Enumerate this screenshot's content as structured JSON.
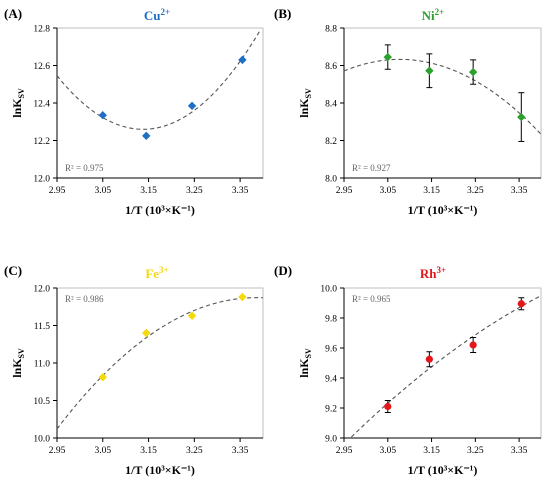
{
  "chart_data": [
    {
      "type": "scatter",
      "panel": "(A)",
      "ion": "Cu",
      "charge": "2+",
      "color": "#1f6fc5",
      "marker": "diamond",
      "error_bars": false,
      "xlabel": "1/T (10³×K⁻¹)",
      "ylabel": "lnK",
      "ylabel_sub": "SV",
      "xlim": [
        2.95,
        3.4
      ],
      "ylim": [
        12.0,
        12.8
      ],
      "xticks": [
        "2.95",
        "3.05",
        "3.15",
        "3.25",
        "3.35"
      ],
      "yticks": [
        "12.0",
        "12.2",
        "12.4",
        "12.6",
        "12.8"
      ],
      "x": [
        3.05,
        3.145,
        3.245,
        3.355
      ],
      "y": [
        12.335,
        12.225,
        12.385,
        12.63
      ],
      "fit": "polynomial-2",
      "r2_text": "R² = 0.975",
      "r2_position": "bottom-left"
    },
    {
      "type": "scatter",
      "panel": "(B)",
      "ion": "Ni",
      "charge": "2+",
      "color": "#2ca02c",
      "marker": "diamond",
      "error_bars": true,
      "xlabel": "1/T (10³×K⁻¹)",
      "ylabel": "lnK",
      "ylabel_sub": "SV",
      "xlim": [
        2.95,
        3.4
      ],
      "ylim": [
        8.0,
        8.8
      ],
      "xticks": [
        "2.95",
        "3.05",
        "3.15",
        "3.25",
        "3.35"
      ],
      "yticks": [
        "8.0",
        "8.2",
        "8.4",
        "8.6",
        "8.8"
      ],
      "x": [
        3.05,
        3.145,
        3.245,
        3.355
      ],
      "y": [
        8.645,
        8.572,
        8.565,
        8.325
      ],
      "yerr": [
        0.065,
        0.09,
        0.065,
        0.13
      ],
      "fit": "polynomial-2",
      "r2_text": "R² = 0.927",
      "r2_position": "bottom-left"
    },
    {
      "type": "scatter",
      "panel": "(C)",
      "ion": "Fe",
      "charge": "3+",
      "color": "#f5d90a",
      "marker": "diamond",
      "error_bars": false,
      "xlabel": "1/T (10³×K⁻¹)",
      "ylabel": "lnK",
      "ylabel_sub": "SV",
      "xlim": [
        2.95,
        3.4
      ],
      "ylim": [
        10.0,
        12.0
      ],
      "xticks": [
        "2.95",
        "3.05",
        "3.15",
        "3.25",
        "3.35"
      ],
      "yticks": [
        "10.0",
        "10.5",
        "11.0",
        "11.5",
        "12.0"
      ],
      "x": [
        3.05,
        3.145,
        3.245,
        3.355
      ],
      "y": [
        10.81,
        11.4,
        11.63,
        11.88
      ],
      "fit": "polynomial-2",
      "r2_text": "R² = 0.986",
      "r2_position": "top-left"
    },
    {
      "type": "scatter",
      "panel": "(D)",
      "ion": "Rh",
      "charge": "3+",
      "color": "#e3171b",
      "marker": "circle",
      "error_bars": true,
      "xlabel": "1/T (10³×K⁻¹)",
      "ylabel": "lnK",
      "ylabel_sub": "SV",
      "xlim": [
        2.95,
        3.4
      ],
      "ylim": [
        9.0,
        10.0
      ],
      "xticks": [
        "2.95",
        "3.05",
        "3.15",
        "3.25",
        "3.35"
      ],
      "yticks": [
        "9.0",
        "9.2",
        "9.4",
        "9.6",
        "9.8",
        "10.0"
      ],
      "x": [
        3.05,
        3.145,
        3.245,
        3.355
      ],
      "y": [
        9.21,
        9.525,
        9.62,
        9.895
      ],
      "yerr": [
        0.04,
        0.05,
        0.05,
        0.04
      ],
      "fit": "polynomial-2",
      "r2_text": "R² = 0.965",
      "r2_position": "top-left"
    }
  ],
  "style": {
    "fit_line_color": "#555555",
    "axis_color": "#000000",
    "plot_border_color": "#bfbfbf",
    "background": "#ffffff"
  }
}
